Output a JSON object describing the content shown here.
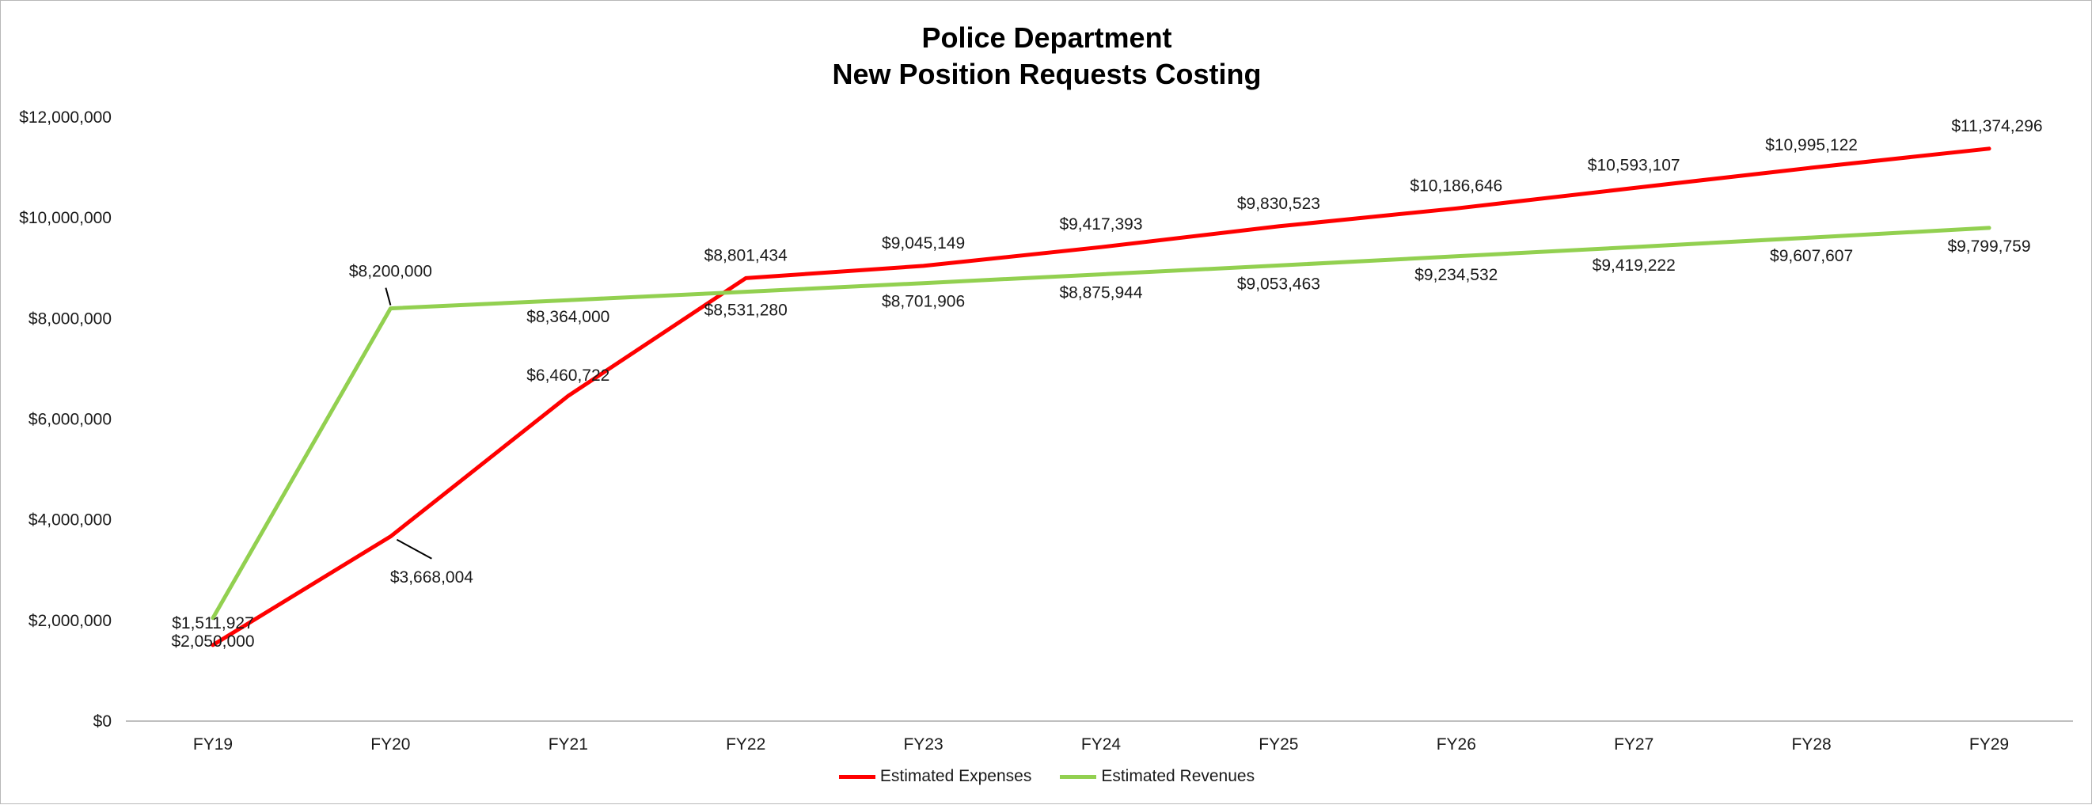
{
  "chart_data": {
    "type": "line",
    "title": [
      "Police Department",
      "New Position Requests Costing"
    ],
    "categories": [
      "FY19",
      "FY20",
      "FY21",
      "FY22",
      "FY23",
      "FY24",
      "FY25",
      "FY26",
      "FY27",
      "FY28",
      "FY29"
    ],
    "ylim": [
      0,
      12000000
    ],
    "yticks": [
      {
        "value": 0,
        "label": "$0"
      },
      {
        "value": 2000000,
        "label": "$2,000,000"
      },
      {
        "value": 4000000,
        "label": "$4,000,000"
      },
      {
        "value": 6000000,
        "label": "$6,000,000"
      },
      {
        "value": 8000000,
        "label": "$8,000,000"
      },
      {
        "value": 10000000,
        "label": "$10,000,000"
      },
      {
        "value": 12000000,
        "label": "$12,000,000"
      }
    ],
    "grid": false,
    "legend": "bottom-center",
    "series": [
      {
        "name": "Estimated Expenses",
        "color": "#ff0000",
        "values": [
          1511927,
          3668004,
          6460722,
          8801434,
          9045149,
          9417393,
          9830523,
          10186646,
          10593107,
          10995122,
          11374296
        ],
        "labels": [
          "$1,511,927",
          "$3,668,004",
          "$6,460,722",
          "$8,801,434",
          "$9,045,149",
          "$9,417,393",
          "$9,830,523",
          "$10,186,646",
          "$10,593,107",
          "$10,995,122",
          "$11,374,296"
        ]
      },
      {
        "name": "Estimated Revenues",
        "color": "#92d050",
        "values": [
          2050000,
          8200000,
          8364000,
          8531280,
          8701906,
          8875944,
          9053463,
          9234532,
          9419222,
          9607607,
          9799759
        ],
        "labels": [
          "$2,050,000",
          "$8,200,000",
          "$8,364,000",
          "$8,531,280",
          "$8,701,906",
          "$8,875,944",
          "$9,053,463",
          "$9,234,532",
          "$9,419,222",
          "$9,607,607",
          "$9,799,759"
        ]
      }
    ]
  }
}
